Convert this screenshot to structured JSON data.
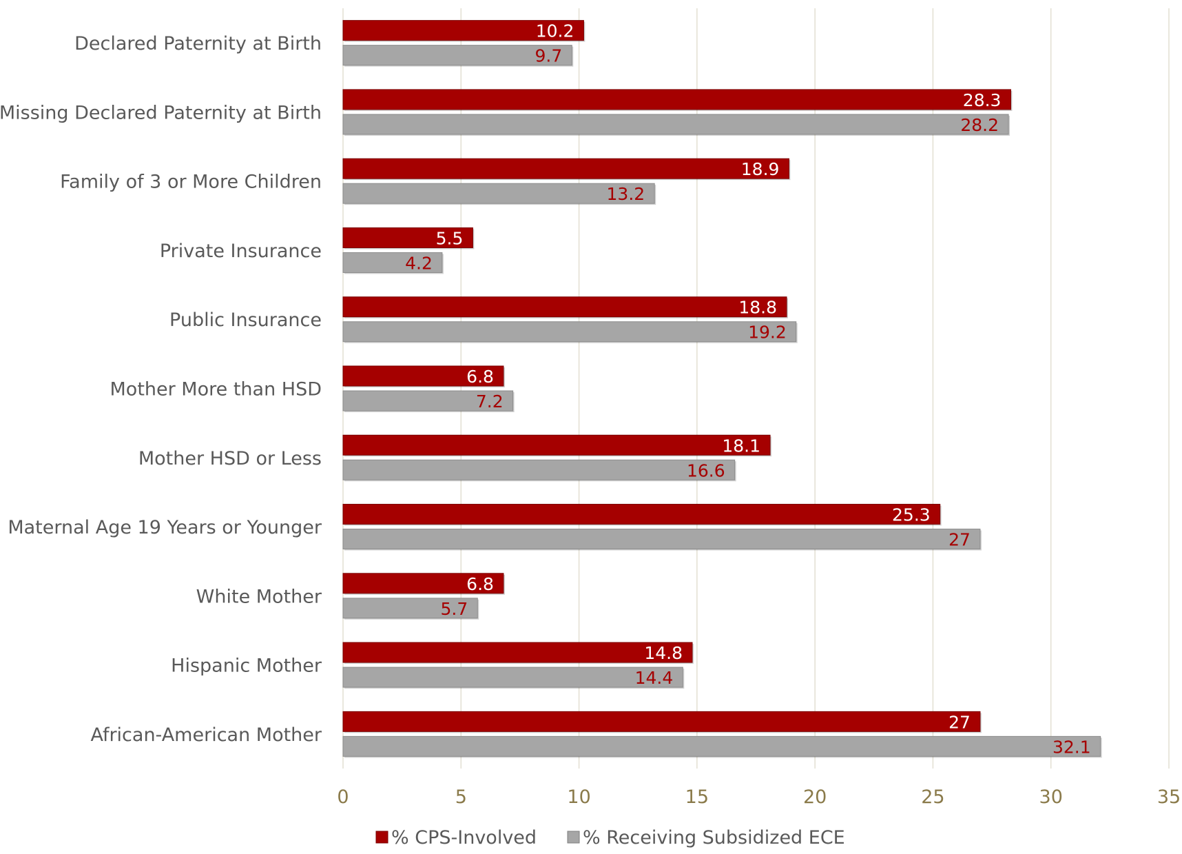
{
  "chart_data": {
    "type": "bar",
    "orientation": "horizontal",
    "title": "",
    "xlabel": "",
    "ylabel": "",
    "xlim": [
      0,
      35
    ],
    "xticks": [
      0,
      5,
      10,
      15,
      20,
      25,
      30,
      35
    ],
    "grid": true,
    "legend_position": "bottom",
    "categories": [
      "Declared Paternity at Birth",
      "Missing Declared Paternity at Birth",
      "Family of 3 or More Children",
      "Private Insurance",
      "Public Insurance",
      "Mother More than HSD",
      "Mother HSD or Less",
      "Maternal Age 19 Years or Younger",
      "White Mother",
      "Hispanic Mother",
      "African-American Mother"
    ],
    "series": [
      {
        "name": "% CPS-Involved",
        "color": "#a50000",
        "label_color": "#ffffff",
        "values": [
          10.2,
          28.3,
          18.9,
          5.5,
          18.8,
          6.8,
          18.1,
          25.3,
          6.8,
          14.8,
          27
        ],
        "labels": [
          "10.2",
          "28.3",
          "18.9",
          "5.5",
          "18.8",
          "6.8",
          "18.1",
          "25.3",
          "6.8",
          "14.8",
          "27"
        ]
      },
      {
        "name": "% Receiving Subsidized ECE",
        "color": "#a6a6a6",
        "label_color": "#a50000",
        "values": [
          9.7,
          28.2,
          13.2,
          4.2,
          19.2,
          7.2,
          16.6,
          27,
          5.7,
          14.4,
          32.1
        ],
        "labels": [
          "9.7",
          "28.2",
          "13.2",
          "4.2",
          "19.2",
          "7.2",
          "16.6",
          "27",
          "5.7",
          "14.4",
          "32.1"
        ]
      }
    ]
  }
}
